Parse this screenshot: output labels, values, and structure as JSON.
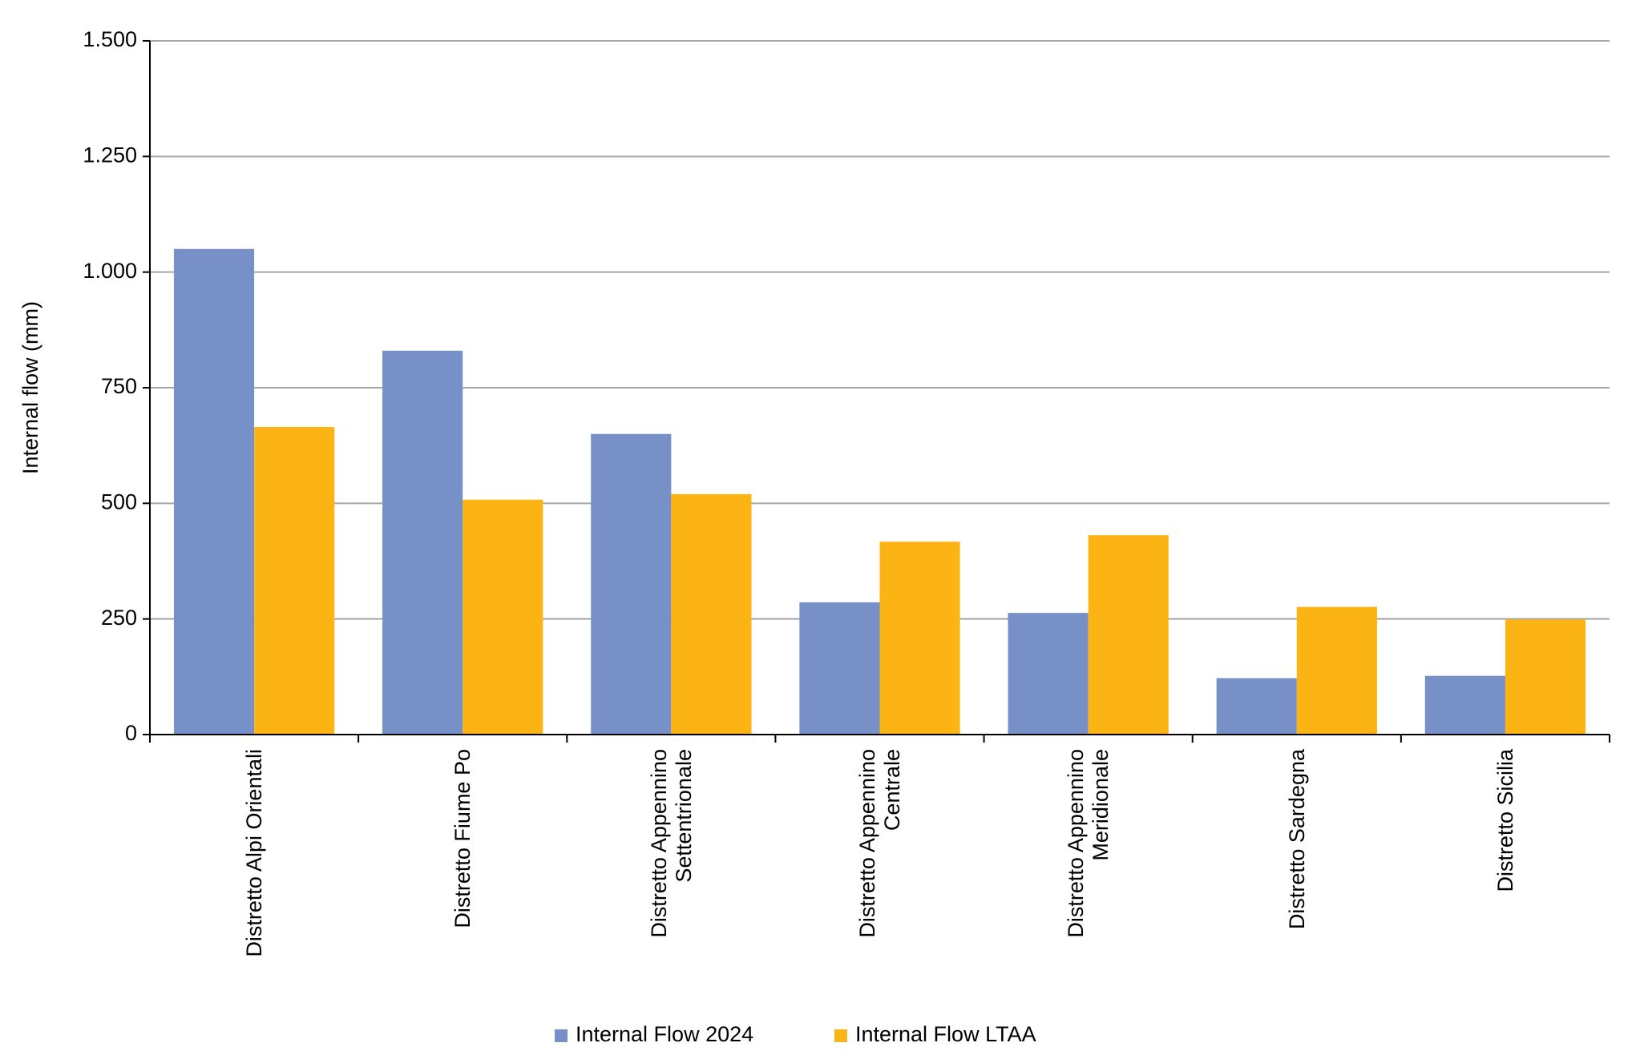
{
  "chart_data": {
    "type": "bar",
    "y_label": "Internal flow (mm)",
    "categories": [
      "Distretto Alpi Orientali",
      "Distretto Fiume Po",
      "Distretto Appennino\nSettentrionale",
      "Distretto Appennino\nCentrale",
      "Distretto Appennino\nMeridionale",
      "Distretto Sardegna",
      "Distretto Sicilia"
    ],
    "series": [
      {
        "name": "Internal Flow 2024",
        "color": "#7890c8",
        "values": [
          1050,
          830,
          650,
          286,
          263,
          122,
          127
        ]
      },
      {
        "name": "Internal Flow LTAA",
        "color": "#fbb413",
        "values": [
          665,
          508,
          520,
          417,
          431,
          276,
          249
        ]
      }
    ],
    "ylim": [
      0,
      1500
    ],
    "yticks": [
      0,
      250,
      500,
      750,
      {
        "value": 1000,
        "label": "1.000"
      },
      {
        "value": 1250,
        "label": "1.250"
      },
      {
        "value": 1500,
        "label": "1.500"
      }
    ],
    "grid": true,
    "legend": "bottom"
  }
}
